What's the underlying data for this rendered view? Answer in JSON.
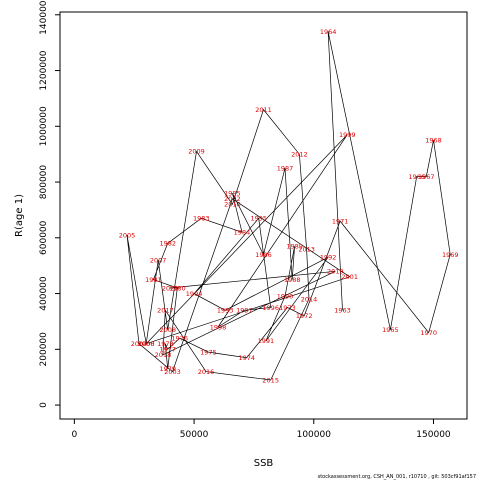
{
  "chart_data": {
    "type": "scatter",
    "xlabel": "SSB",
    "ylabel": "R(age 1)",
    "xlim": [
      -6000,
      164000
    ],
    "ylim": [
      -50000,
      1410000
    ],
    "xticks": [
      0,
      50000,
      100000,
      150000
    ],
    "yticks": [
      0,
      200000,
      400000,
      600000,
      800000,
      1000000,
      1200000,
      1400000
    ],
    "line_color": "#000000",
    "label_color": "#e00000",
    "footer": "stockassessment.org, CSH_AN_001, r10710 , git: 503cf91af157",
    "points": [
      {
        "year": "1963",
        "x": 112000,
        "y": 340000
      },
      {
        "year": "1964",
        "x": 106000,
        "y": 1340000
      },
      {
        "year": "1965",
        "x": 132000,
        "y": 270000
      },
      {
        "year": "1966",
        "x": 143000,
        "y": 820000
      },
      {
        "year": "1967",
        "x": 147000,
        "y": 820000
      },
      {
        "year": "1968",
        "x": 150000,
        "y": 950000
      },
      {
        "year": "1969",
        "x": 157000,
        "y": 540000
      },
      {
        "year": "1970",
        "x": 148000,
        "y": 260000
      },
      {
        "year": "1971",
        "x": 111000,
        "y": 660000
      },
      {
        "year": "1972",
        "x": 96000,
        "y": 320000
      },
      {
        "year": "1973",
        "x": 89000,
        "y": 350000
      },
      {
        "year": "1974",
        "x": 72000,
        "y": 170000
      },
      {
        "year": "1975",
        "x": 56000,
        "y": 190000
      },
      {
        "year": "1976",
        "x": 44000,
        "y": 240000
      },
      {
        "year": "1977",
        "x": 39000,
        "y": 200000
      },
      {
        "year": "1978",
        "x": 38000,
        "y": 220000
      },
      {
        "year": "1979",
        "x": 39000,
        "y": 130000
      },
      {
        "year": "1980",
        "x": 43000,
        "y": 420000
      },
      {
        "year": "1981",
        "x": 33000,
        "y": 450000
      },
      {
        "year": "1982",
        "x": 39000,
        "y": 580000
      },
      {
        "year": "1983",
        "x": 53000,
        "y": 670000
      },
      {
        "year": "1984",
        "x": 70000,
        "y": 620000
      },
      {
        "year": "1985",
        "x": 66000,
        "y": 760000
      },
      {
        "year": "1986",
        "x": 79000,
        "y": 540000
      },
      {
        "year": "1987",
        "x": 88000,
        "y": 850000
      },
      {
        "year": "1988",
        "x": 91000,
        "y": 450000
      },
      {
        "year": "1989",
        "x": 92000,
        "y": 570000
      },
      {
        "year": "1990",
        "x": 88000,
        "y": 390000
      },
      {
        "year": "1991",
        "x": 80000,
        "y": 230000
      },
      {
        "year": "1992",
        "x": 106000,
        "y": 530000
      },
      {
        "year": "1993",
        "x": 63000,
        "y": 340000
      },
      {
        "year": "1994",
        "x": 50000,
        "y": 400000
      },
      {
        "year": "1995",
        "x": 77000,
        "y": 670000
      },
      {
        "year": "1996",
        "x": 82000,
        "y": 350000
      },
      {
        "year": "1997",
        "x": 71000,
        "y": 340000
      },
      {
        "year": "1998",
        "x": 60000,
        "y": 280000
      },
      {
        "year": "1999",
        "x": 114000,
        "y": 970000
      },
      {
        "year": "2000",
        "x": 30000,
        "y": 220000
      },
      {
        "year": "2001",
        "x": 115000,
        "y": 460000
      },
      {
        "year": "2002",
        "x": 66000,
        "y": 740000
      },
      {
        "year": "2003",
        "x": 41000,
        "y": 120000
      },
      {
        "year": "2004",
        "x": 27000,
        "y": 220000
      },
      {
        "year": "2005",
        "x": 22000,
        "y": 610000
      },
      {
        "year": "2006",
        "x": 30000,
        "y": 220000
      },
      {
        "year": "2007",
        "x": 35000,
        "y": 520000
      },
      {
        "year": "2008",
        "x": 39000,
        "y": 270000
      },
      {
        "year": "2009",
        "x": 51000,
        "y": 910000
      },
      {
        "year": "2010",
        "x": 66000,
        "y": 720000
      },
      {
        "year": "2011",
        "x": 79000,
        "y": 1060000
      },
      {
        "year": "2012",
        "x": 94000,
        "y": 900000
      },
      {
        "year": "2013",
        "x": 97000,
        "y": 560000
      },
      {
        "year": "2014",
        "x": 98000,
        "y": 380000
      },
      {
        "year": "2015",
        "x": 82000,
        "y": 90000
      },
      {
        "year": "2016",
        "x": 55000,
        "y": 120000
      },
      {
        "year": "2017",
        "x": 38000,
        "y": 340000
      },
      {
        "year": "2018",
        "x": 37000,
        "y": 180000
      },
      {
        "year": "2019",
        "x": 109000,
        "y": 480000
      },
      {
        "year": "2020",
        "x": 40000,
        "y": 420000
      }
    ]
  }
}
